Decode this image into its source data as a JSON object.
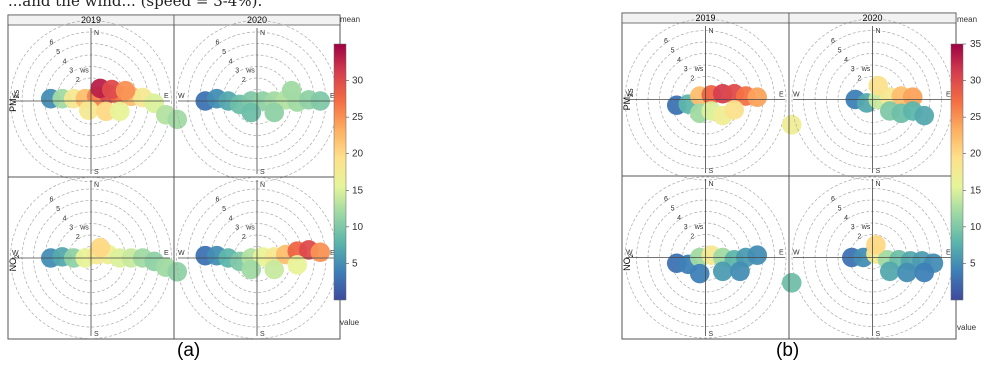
{
  "header_fragment": "...and the wind... (speed = 3-4%).",
  "captions": [
    "(a)",
    "(b)"
  ],
  "chart_data": [
    {
      "type": "polar-plot",
      "panel_label": "(a)",
      "columns": [
        "2019",
        "2020"
      ],
      "rows": [
        {
          "name": "PM",
          "sub": "2.5"
        },
        {
          "name": "NO",
          "sub": "2"
        }
      ],
      "compass": [
        "N",
        "E",
        "S",
        "W"
      ],
      "ws_label": "ws",
      "ring_labels": [
        "2",
        "3",
        "4",
        "5",
        "6"
      ],
      "colorbar": {
        "title": "mean",
        "footer": "value",
        "min": 0,
        "max": 35,
        "ticks": [
          5,
          10,
          15,
          20,
          25,
          30
        ]
      },
      "panels": [
        {
          "row": 0,
          "col": 0,
          "blobs": [
            [
              -3.5,
              0.2,
              5
            ],
            [
              -2.5,
              0.2,
              12
            ],
            [
              -1.5,
              0.2,
              18
            ],
            [
              -0.5,
              0.2,
              22
            ],
            [
              0.5,
              0.4,
              26
            ],
            [
              1.5,
              0.6,
              30
            ],
            [
              2.5,
              0.5,
              27
            ],
            [
              3.5,
              0.4,
              22
            ],
            [
              4.5,
              0.3,
              18
            ],
            [
              5.5,
              -0.2,
              15
            ],
            [
              6.5,
              -1.2,
              13
            ],
            [
              7.5,
              -1.6,
              12
            ],
            [
              -0.2,
              -0.8,
              18
            ],
            [
              1.3,
              -0.9,
              20
            ],
            [
              2.5,
              -0.9,
              16
            ],
            [
              0.8,
              1.1,
              33
            ],
            [
              1.8,
              1.0,
              30
            ],
            [
              3.0,
              0.9,
              25
            ]
          ]
        },
        {
          "row": 0,
          "col": 1,
          "blobs": [
            [
              -4.5,
              0.0,
              3
            ],
            [
              -3.5,
              0.2,
              5
            ],
            [
              -2.5,
              0.0,
              7
            ],
            [
              -1.5,
              -0.3,
              9
            ],
            [
              -0.5,
              0.0,
              10
            ],
            [
              0.5,
              0.0,
              11
            ],
            [
              1.5,
              0.0,
              12
            ],
            [
              2.5,
              0.1,
              13
            ],
            [
              3.5,
              -0.1,
              12
            ],
            [
              4.5,
              0.1,
              11
            ],
            [
              5.5,
              0.0,
              10
            ],
            [
              -0.5,
              -1.0,
              9
            ],
            [
              1.5,
              -1.0,
              11
            ],
            [
              3.0,
              0.9,
              12
            ]
          ]
        },
        {
          "row": 1,
          "col": 0,
          "blobs": [
            [
              -3.5,
              0.0,
              5
            ],
            [
              -2.5,
              0.1,
              7
            ],
            [
              -1.5,
              0.0,
              11
            ],
            [
              -0.5,
              0.0,
              16
            ],
            [
              0.5,
              0.3,
              18
            ],
            [
              1.5,
              0.3,
              17
            ],
            [
              2.5,
              0.0,
              15
            ],
            [
              3.5,
              0.0,
              14
            ],
            [
              4.5,
              0.0,
              12
            ],
            [
              5.5,
              -0.3,
              11
            ],
            [
              6.5,
              -0.8,
              12
            ],
            [
              7.5,
              -1.2,
              11
            ],
            [
              0.8,
              0.9,
              20
            ]
          ]
        },
        {
          "row": 1,
          "col": 1,
          "blobs": [
            [
              -4.5,
              0.2,
              3
            ],
            [
              -3.5,
              0.2,
              5
            ],
            [
              -2.5,
              0.0,
              8
            ],
            [
              -1.5,
              -0.3,
              10
            ],
            [
              -0.5,
              0.0,
              13
            ],
            [
              0.5,
              0.1,
              16
            ],
            [
              1.5,
              0.1,
              18
            ],
            [
              2.5,
              0.3,
              22
            ],
            [
              3.5,
              0.6,
              28
            ],
            [
              4.5,
              0.7,
              30
            ],
            [
              5.5,
              0.5,
              25
            ],
            [
              -0.5,
              -1.0,
              12
            ],
            [
              1.5,
              -1.0,
              14
            ],
            [
              3.5,
              -0.6,
              16
            ]
          ]
        }
      ]
    },
    {
      "type": "polar-plot",
      "panel_label": "(b)",
      "columns": [
        "2019",
        "2020"
      ],
      "rows": [
        {
          "name": "PM",
          "sub": "2.5"
        },
        {
          "name": "NO",
          "sub": "2"
        }
      ],
      "compass": [
        "N",
        "E",
        "S",
        "W"
      ],
      "ws_label": "ws",
      "ring_labels": [
        "2",
        "3",
        "4",
        "5",
        "6"
      ],
      "colorbar": {
        "title": "mean",
        "footer": "value",
        "min": 0,
        "max": 35,
        "ticks": [
          5,
          10,
          15,
          20,
          25,
          30,
          35
        ]
      },
      "panels": [
        {
          "row": 0,
          "col": 0,
          "blobs": [
            [
              -2.5,
              -0.5,
              3
            ],
            [
              -1.5,
              -0.4,
              8
            ],
            [
              -0.5,
              0.3,
              22
            ],
            [
              0.5,
              0.4,
              28
            ],
            [
              1.5,
              0.5,
              31
            ],
            [
              2.5,
              0.5,
              30
            ],
            [
              3.5,
              0.3,
              27
            ],
            [
              4.5,
              0.2,
              24
            ],
            [
              -0.5,
              -1.2,
              12
            ],
            [
              0.5,
              -1.0,
              15
            ],
            [
              1.5,
              -1.4,
              17
            ],
            [
              2.5,
              -0.9,
              19
            ],
            [
              7.5,
              -2.2,
              17
            ]
          ]
        },
        {
          "row": 0,
          "col": 1,
          "blobs": [
            [
              -1.5,
              0.0,
              4
            ],
            [
              -0.5,
              -0.3,
              7
            ],
            [
              0.5,
              0.0,
              14
            ],
            [
              1.5,
              0.2,
              18
            ],
            [
              2.5,
              0.3,
              22
            ],
            [
              3.5,
              0.2,
              24
            ],
            [
              0.5,
              1.2,
              19
            ],
            [
              1.5,
              -1.0,
              10
            ],
            [
              2.5,
              -1.2,
              9
            ],
            [
              3.5,
              -1.0,
              8
            ],
            [
              4.5,
              -1.4,
              7
            ]
          ]
        },
        {
          "row": 1,
          "col": 0,
          "blobs": [
            [
              -2.5,
              -0.5,
              3
            ],
            [
              -1.5,
              -0.6,
              4
            ],
            [
              -0.5,
              0.0,
              12
            ],
            [
              0.5,
              0.2,
              18
            ],
            [
              1.5,
              0.0,
              12
            ],
            [
              2.5,
              -0.2,
              8
            ],
            [
              3.5,
              0.0,
              6
            ],
            [
              4.5,
              0.2,
              5
            ],
            [
              -0.5,
              -1.4,
              4
            ],
            [
              1.5,
              -1.2,
              6
            ],
            [
              3.0,
              -1.2,
              5
            ],
            [
              7.5,
              -2.2,
              9
            ]
          ]
        },
        {
          "row": 1,
          "col": 1,
          "blobs": [
            [
              -1.8,
              0.0,
              3
            ],
            [
              -0.8,
              0.0,
              5
            ],
            [
              0.3,
              0.3,
              18
            ],
            [
              1.3,
              -0.2,
              12
            ],
            [
              2.3,
              -0.2,
              9
            ],
            [
              3.3,
              -0.3,
              7
            ],
            [
              4.3,
              -0.3,
              6
            ],
            [
              5.3,
              -0.5,
              5
            ],
            [
              0.3,
              1.1,
              20
            ],
            [
              1.5,
              -1.2,
              7
            ],
            [
              3.0,
              -1.3,
              5
            ],
            [
              4.5,
              -1.3,
              4
            ]
          ]
        }
      ]
    }
  ]
}
